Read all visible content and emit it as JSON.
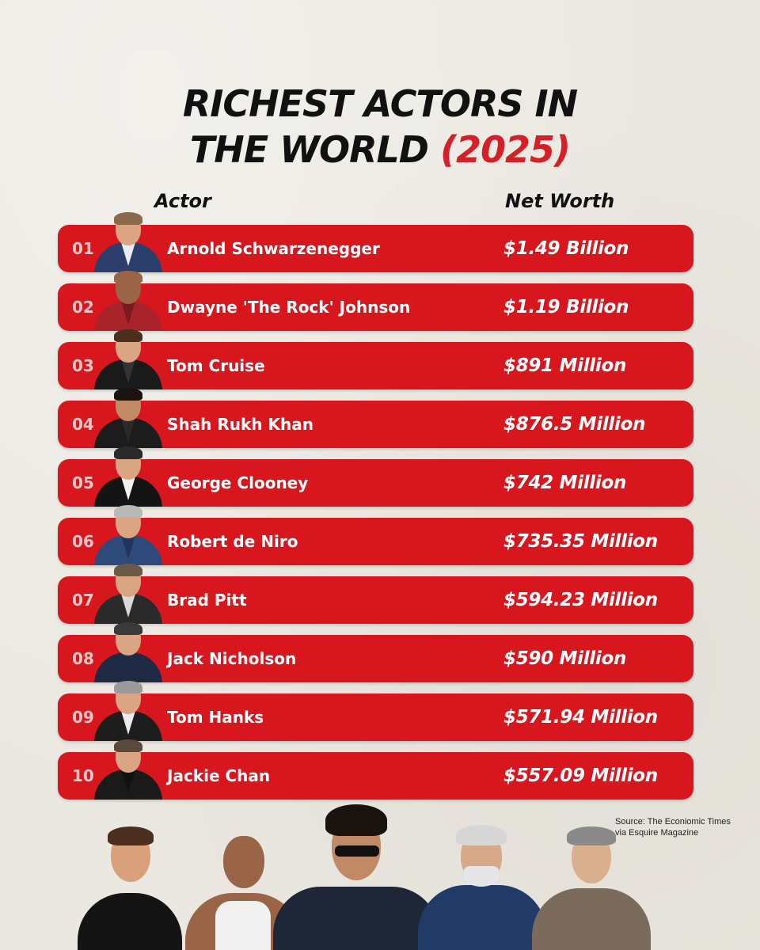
{
  "title_line1": "RICHEST ACTORS IN",
  "title_line2_main": "THE WORLD",
  "title_line2_year": "(2025)",
  "columns": {
    "actor": "Actor",
    "net_worth": "Net Worth"
  },
  "accent_color": "#d8161e",
  "rows": [
    {
      "rank": "01",
      "name": "Arnold Schwarzenegger",
      "net_worth": "$1.49 Billion"
    },
    {
      "rank": "02",
      "name": "Dwayne 'The Rock' Johnson",
      "net_worth": "$1.19 Billion"
    },
    {
      "rank": "03",
      "name": "Tom Cruise",
      "net_worth": "$891 Million"
    },
    {
      "rank": "04",
      "name": "Shah Rukh Khan",
      "net_worth": "$876.5 Million"
    },
    {
      "rank": "05",
      "name": "George Clooney",
      "net_worth": "$742 Million"
    },
    {
      "rank": "06",
      "name": "Robert de Niro",
      "net_worth": "$735.35 Million"
    },
    {
      "rank": "07",
      "name": "Brad Pitt",
      "net_worth": "$594.23 Million"
    },
    {
      "rank": "08",
      "name": "Jack Nicholson",
      "net_worth": "$590 Million"
    },
    {
      "rank": "09",
      "name": "Tom Hanks",
      "net_worth": "$571.94 Million"
    },
    {
      "rank": "10",
      "name": "Jackie Chan",
      "net_worth": "$557.09 Million"
    }
  ],
  "source_line1": "Source: The Econiomic Times",
  "source_line2": "via Esquire Magazine"
}
